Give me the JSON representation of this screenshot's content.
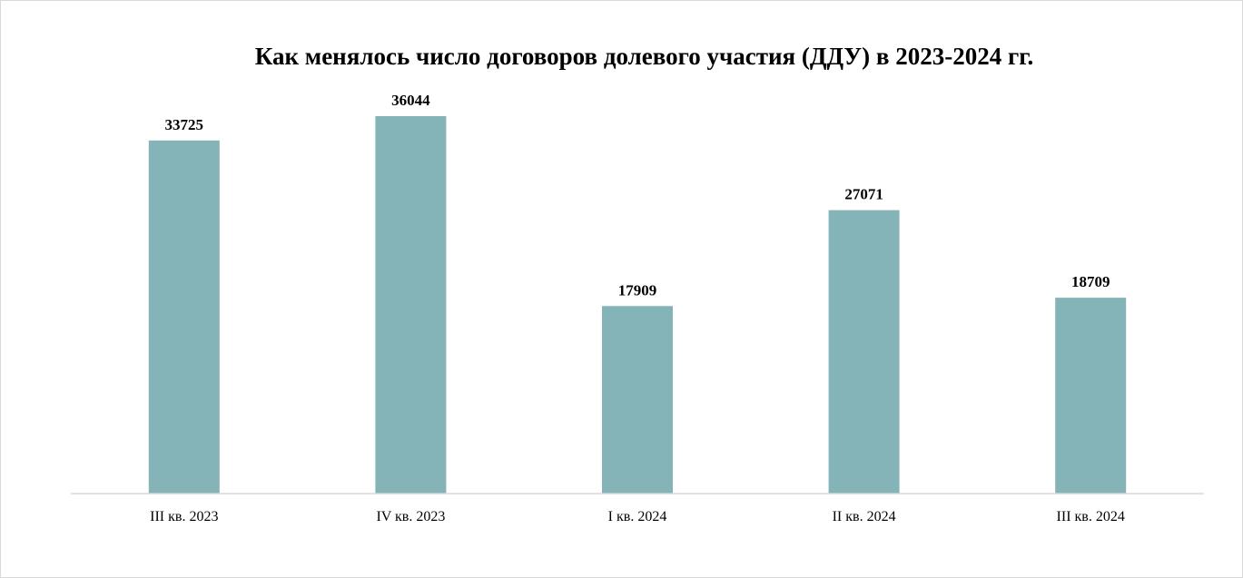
{
  "chart_data": {
    "type": "bar",
    "title": "Как менялось число договоров долевого участия (ДДУ) в 2023-2024 гг.",
    "categories": [
      "III кв. 2023",
      "IV кв. 2023",
      "I кв. 2024",
      "II кв. 2024",
      "III кв. 2024"
    ],
    "series": [
      {
        "values": [
          33725,
          36044,
          17909,
          27071,
          18709
        ]
      }
    ],
    "data_labels": [
      "33725",
      "36044",
      "17909",
      "27071",
      "18709"
    ],
    "ylim": [
      0,
      36044
    ],
    "grid": false,
    "legend": "none",
    "bar_color": "#84b4b7",
    "axis_color": "#d9d9d9"
  }
}
